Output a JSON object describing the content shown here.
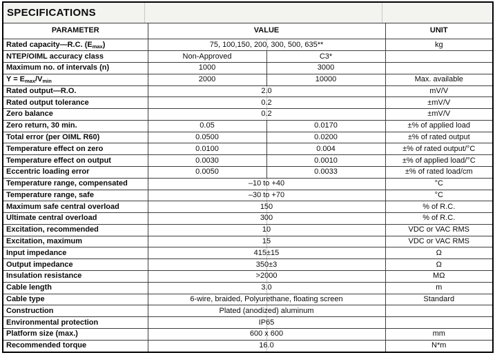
{
  "table": {
    "title": "SPECIFICATIONS",
    "header": {
      "parameter": "PARAMETER",
      "value": "VALUE",
      "unit": "UNIT"
    },
    "rows": [
      {
        "param": "Rated capacity—R.C. (E_{max})",
        "values": [
          "75, 100,150, 200, 300, 500, 635**"
        ],
        "unit": "kg"
      },
      {
        "param": "NTEP/OIML accuracy class",
        "values": [
          "Non-Approved",
          "C3*"
        ],
        "unit": ""
      },
      {
        "param": "Maximum no. of intervals (n)",
        "values": [
          "1000",
          "3000"
        ],
        "unit": ""
      },
      {
        "param": "Y = E_{max}/V_{min}",
        "values": [
          "2000",
          "10000"
        ],
        "unit": "Max. available"
      },
      {
        "param": "Rated output—R.O.",
        "values": [
          "2.0"
        ],
        "unit": "mV/V"
      },
      {
        "param": "Rated output tolerance",
        "values": [
          "0.2"
        ],
        "unit": "±mV/V"
      },
      {
        "param": "Zero balance",
        "values": [
          "0.2"
        ],
        "unit": "±mV/V"
      },
      {
        "param": "Zero return, 30 min.",
        "values": [
          "0.05",
          "0.0170"
        ],
        "unit": "±% of applied load"
      },
      {
        "param": "Total error (per OIML R60)",
        "values": [
          "0.0500",
          "0.0200"
        ],
        "unit": "±% of rated output"
      },
      {
        "param": "Temperature effect on zero",
        "values": [
          "0.0100",
          "0.004"
        ],
        "unit": "±% of rated output/°C"
      },
      {
        "param": "Temperature effect on output",
        "values": [
          "0.0030",
          "0.0010"
        ],
        "unit": "±% of applied load/°C"
      },
      {
        "param": "Eccentric loading error",
        "values": [
          "0.0050",
          "0.0033"
        ],
        "unit": "±% of rated load/cm"
      },
      {
        "param": "Temperature range, compensated",
        "values": [
          "–10 to +40"
        ],
        "unit": "°C"
      },
      {
        "param": "Temperature range, safe",
        "values": [
          "–30 to +70"
        ],
        "unit": "°C"
      },
      {
        "param": "Maximum safe central overload",
        "values": [
          "150"
        ],
        "unit": "% of R.C."
      },
      {
        "param": "Ultimate central overload",
        "values": [
          "300"
        ],
        "unit": "% of R.C."
      },
      {
        "param": "Excitation, recommended",
        "values": [
          "10"
        ],
        "unit": "VDC or VAC RMS"
      },
      {
        "param": "Excitation, maximum",
        "values": [
          "15"
        ],
        "unit": "VDC or VAC RMS"
      },
      {
        "param": "Input impedance",
        "values": [
          "415±15"
        ],
        "unit": "Ω"
      },
      {
        "param": "Output impedance",
        "values": [
          "350±3"
        ],
        "unit": "Ω"
      },
      {
        "param": "Insulation resistance",
        "values": [
          ">2000"
        ],
        "unit": "MΩ"
      },
      {
        "param": "Cable length",
        "values": [
          "3.0"
        ],
        "unit": "m"
      },
      {
        "param": "Cable type",
        "values": [
          "6-wire, braided, Polyurethane, floating screen"
        ],
        "unit": "Standard"
      },
      {
        "param": "Construction",
        "values": [
          "Plated (anodized) aluminum"
        ],
        "unit": ""
      },
      {
        "param": "Environmental protection",
        "values": [
          "IP65"
        ],
        "unit": ""
      },
      {
        "param": "Platform size (max.)",
        "values": [
          "600 x 600"
        ],
        "unit": "mm"
      },
      {
        "param": "Recommended torque",
        "values": [
          "16.0"
        ],
        "unit": "N*m"
      }
    ]
  }
}
